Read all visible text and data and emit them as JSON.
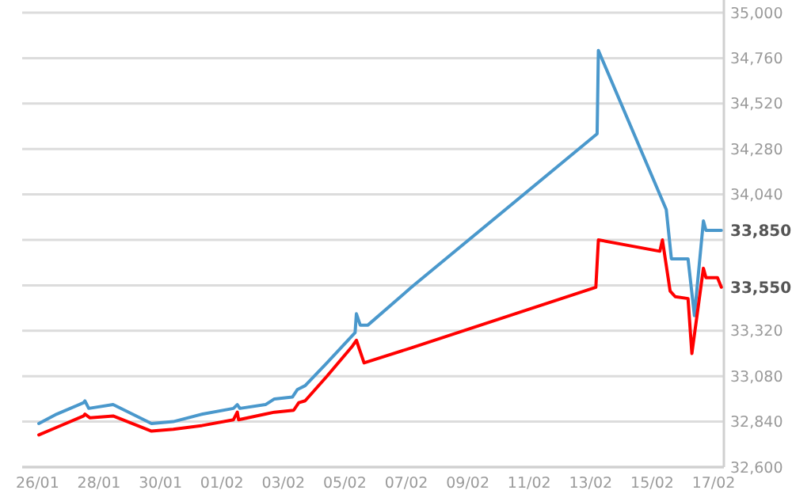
{
  "chart_data": {
    "type": "line",
    "xlim": [
      "--01-25T12:00",
      "--02-17T08:00"
    ],
    "xticks": [
      {
        "value": "--01-26",
        "label": "26/01"
      },
      {
        "value": "--01-28",
        "label": "28/01"
      },
      {
        "value": "--01-30",
        "label": "30/01"
      },
      {
        "value": "--02-01",
        "label": "01/02"
      },
      {
        "value": "--02-03",
        "label": "03/02"
      },
      {
        "value": "--02-05",
        "label": "05/02"
      },
      {
        "value": "--02-07",
        "label": "07/02"
      },
      {
        "value": "--02-09",
        "label": "09/02"
      },
      {
        "value": "--02-11",
        "label": "11/02"
      },
      {
        "value": "--02-13",
        "label": "13/02"
      },
      {
        "value": "--02-15",
        "label": "15/02"
      },
      {
        "value": "--02-17",
        "label": "17/02"
      }
    ],
    "ylim": [
      32600,
      35000
    ],
    "yticks": [
      {
        "value": 32600,
        "label": "32,600"
      },
      {
        "value": 32840,
        "label": "32,840"
      },
      {
        "value": 33080,
        "label": "33,080"
      },
      {
        "value": 33320,
        "label": "33,320"
      },
      {
        "value": 33560,
        "label": null
      },
      {
        "value": 33800,
        "label": null
      },
      {
        "value": 34040,
        "label": "34,040"
      },
      {
        "value": 34280,
        "label": "34,280"
      },
      {
        "value": 34520,
        "label": "34,520"
      },
      {
        "value": 34760,
        "label": "34,760"
      },
      {
        "value": 35000,
        "label": "35,000"
      }
    ],
    "grid": "y",
    "marker": "none",
    "line_style": "solid",
    "series": [
      {
        "color": "#4a98cc",
        "x": [
          "--01-26T01:00",
          "--01-26T15:00",
          "--01-27T12:00",
          "--01-27T13:00",
          "--01-27T16:00",
          "--01-28T11:00",
          "--01-29T17:00",
          "--01-30T10:00",
          "--01-31T09:00",
          "--02-01T09:00",
          "--02-01T12:00",
          "--02-01T14:00",
          "--02-02T10:00",
          "--02-02T17:00",
          "--02-03T07:00",
          "--02-03T11:00",
          "--02-03T17:00",
          "--02-04T10:00",
          "--02-05T08:00",
          "--02-05T09:00",
          "--02-05T12:00",
          "--02-05T18:00",
          "--02-07T04:00",
          "--02-13T05:00",
          "--02-13T06:00",
          "--02-15T11:00",
          "--02-15T15:00",
          "--02-16T04:00",
          "--02-16T09:00",
          "--02-16T16:00",
          "--02-16T18:00",
          "--02-17T06:00"
        ],
        "values": [
          32830,
          32880,
          32940,
          32950,
          32910,
          32930,
          32830,
          32840,
          32880,
          32910,
          32930,
          32910,
          32930,
          32960,
          32970,
          33010,
          33030,
          33150,
          33310,
          33410,
          33350,
          33350,
          33550,
          34360,
          34800,
          33960,
          33700,
          33700,
          33400,
          33900,
          33850,
          33850
        ]
      },
      {
        "color": "#ff0000",
        "x": [
          "--01-26T01:00",
          "--01-26T15:00",
          "--01-27T12:00",
          "--01-27T13:00",
          "--01-27T17:00",
          "--01-28T11:00",
          "--01-29T17:00",
          "--01-30T10:00",
          "--01-31T09:00",
          "--02-01T09:00",
          "--02-01T12:00",
          "--02-01T13:00",
          "--02-02T10:00",
          "--02-02T17:00",
          "--02-03T08:00",
          "--02-03T12:00",
          "--02-03T17:00",
          "--02-04T10:00",
          "--02-05T06:00",
          "--02-05T09:00",
          "--02-05T12:00",
          "--02-05T15:00",
          "--02-07T04:00",
          "--02-13T04:00",
          "--02-13T06:00",
          "--02-15T06:00",
          "--02-15T08:00",
          "--02-15T14:00",
          "--02-15T18:00",
          "--02-16T04:00",
          "--02-16T07:00",
          "--02-16T16:00",
          "--02-16T18:00",
          "--02-17T03:00",
          "--02-17T06:00"
        ],
        "values": [
          32770,
          32810,
          32870,
          32880,
          32860,
          32870,
          32790,
          32800,
          32820,
          32850,
          32890,
          32850,
          32880,
          32890,
          32900,
          32940,
          32950,
          33080,
          33240,
          33270,
          33210,
          33150,
          33230,
          33550,
          33800,
          33740,
          33800,
          33530,
          33500,
          33490,
          33200,
          33650,
          33600,
          33600,
          33550
        ]
      }
    ],
    "annotations": [
      {
        "text": "33,850",
        "x": "--02-17T06:00",
        "y": 33850
      },
      {
        "text": "33,550",
        "x": "--02-17T06:00",
        "y": 33550
      }
    ]
  }
}
